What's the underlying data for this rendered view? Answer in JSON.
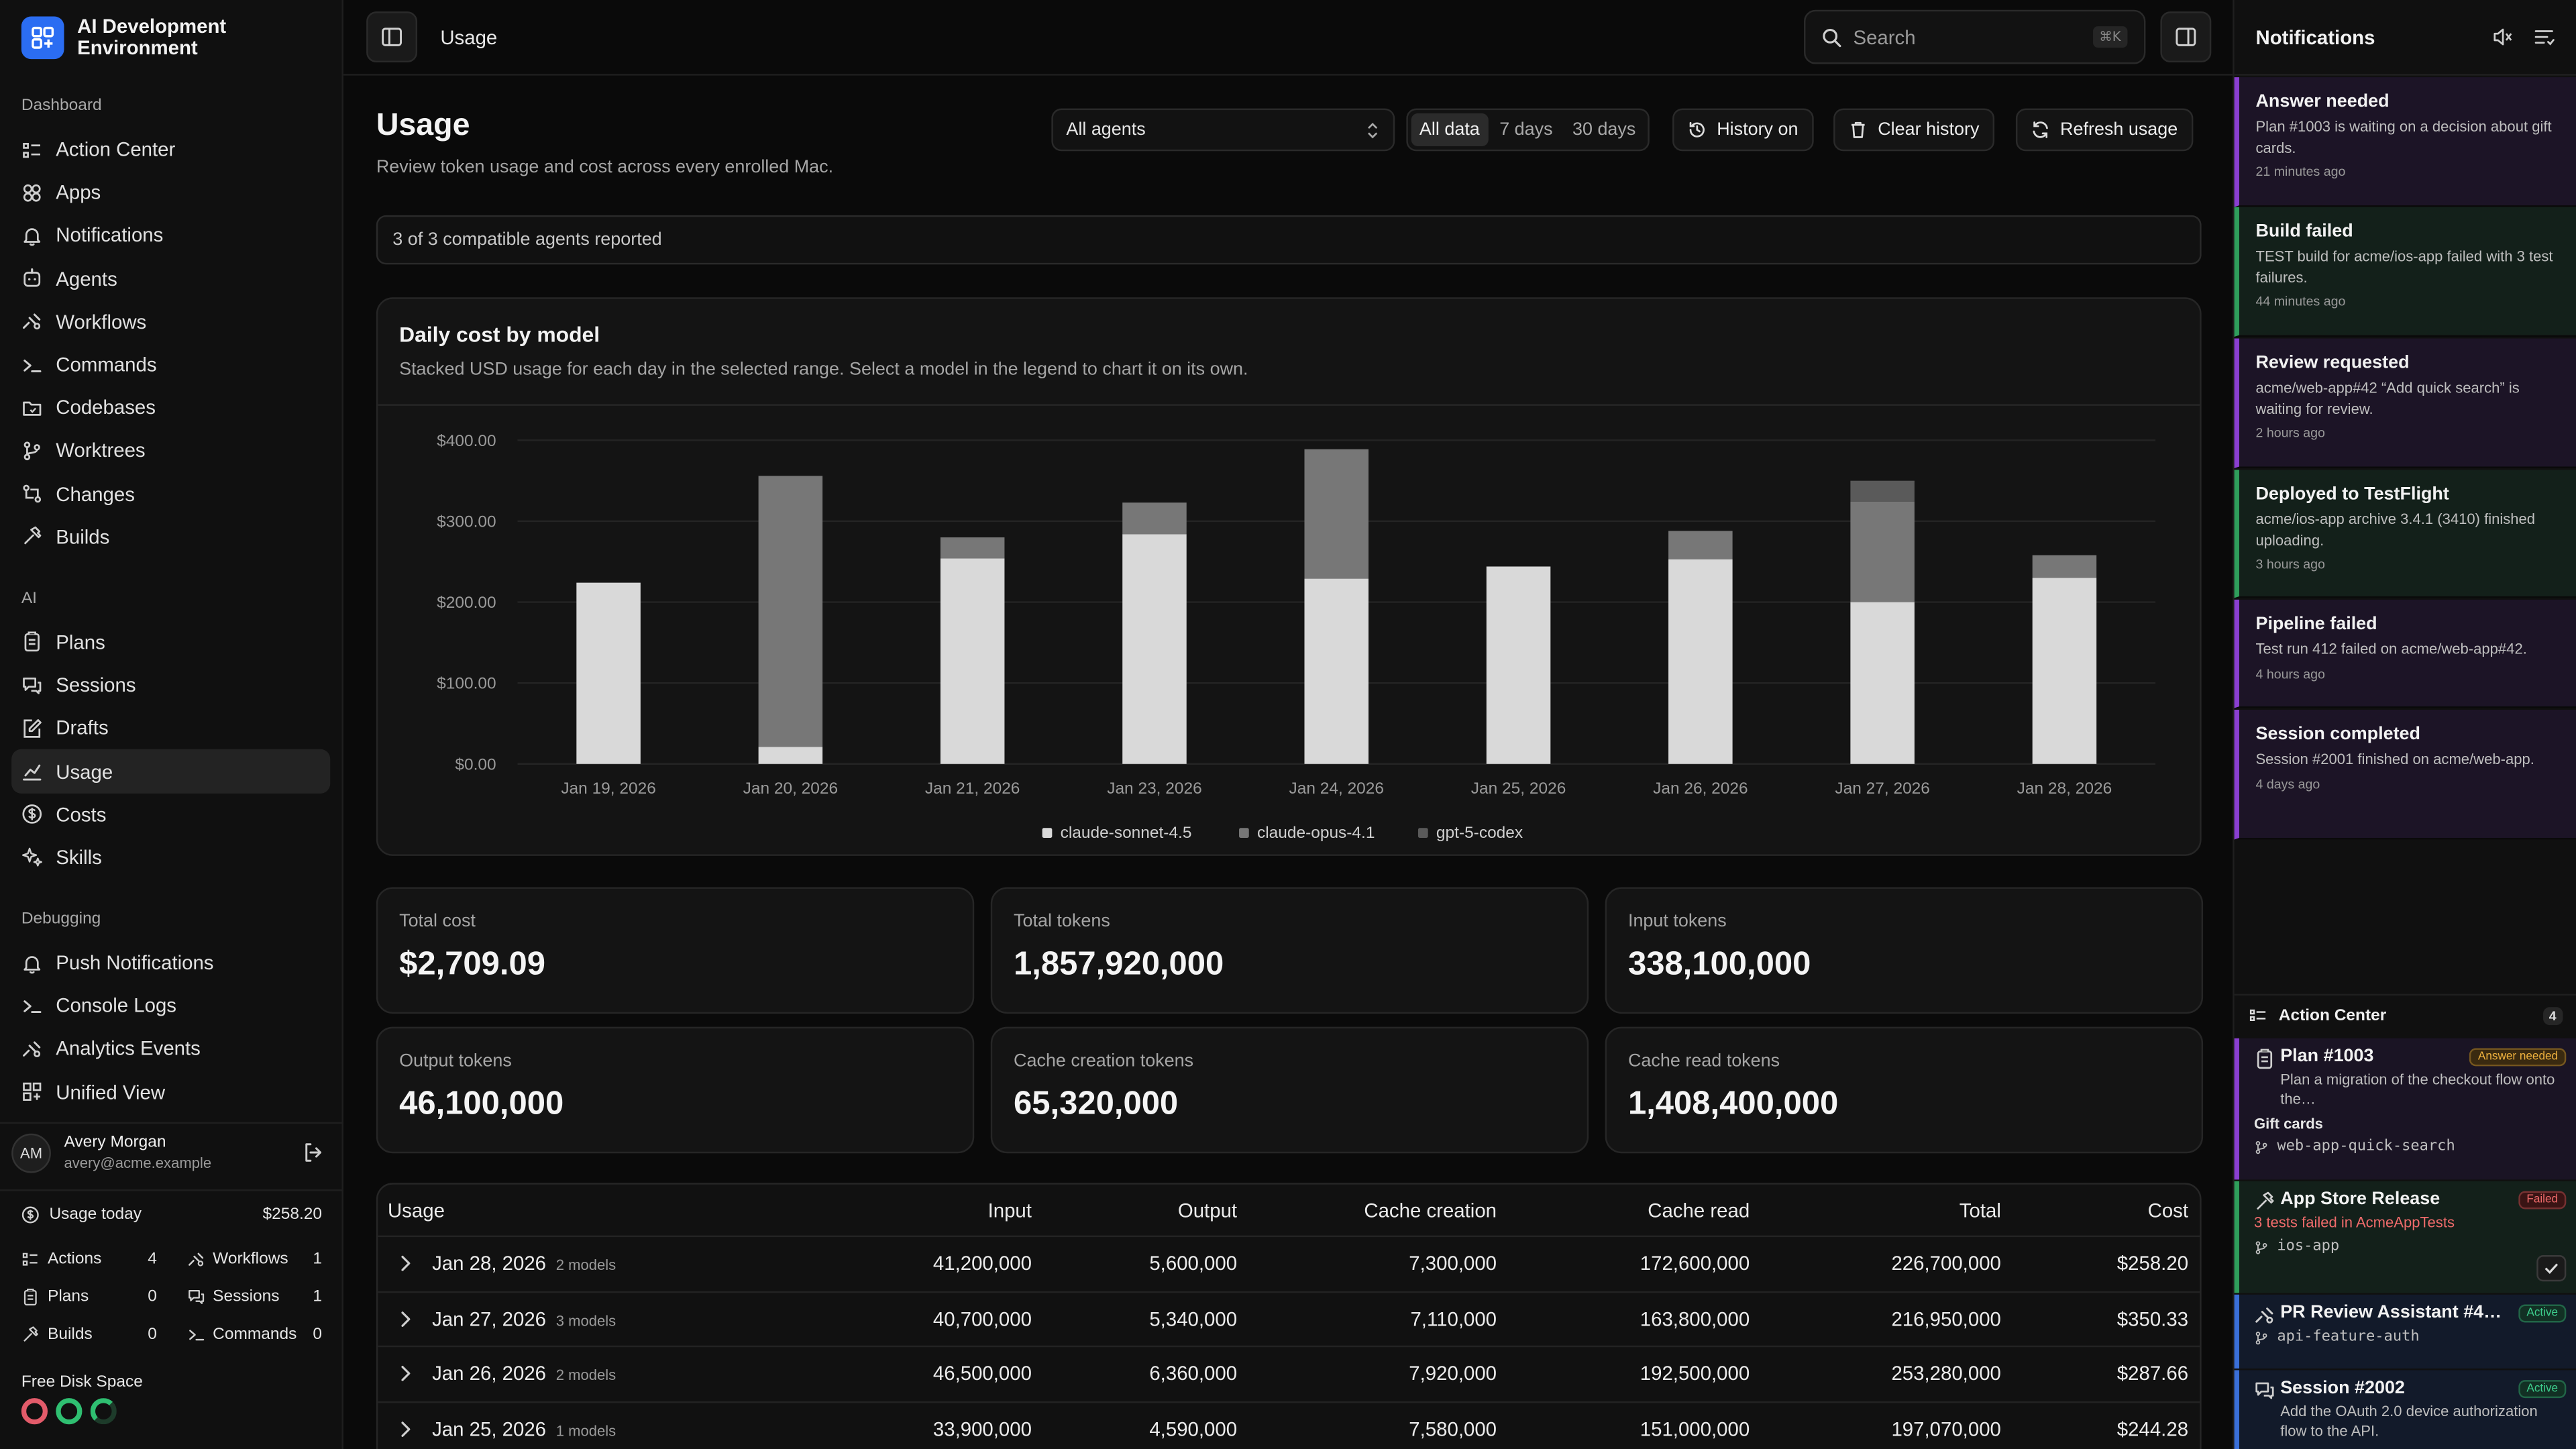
{
  "app": {
    "name": "AI Development Environment"
  },
  "sidebar": {
    "sections": [
      {
        "title": "Dashboard",
        "items": [
          {
            "label": "Action Center",
            "icon": "action-center-icon"
          },
          {
            "label": "Apps",
            "icon": "apps-icon"
          },
          {
            "label": "Notifications",
            "icon": "bell-icon"
          },
          {
            "label": "Agents",
            "icon": "agent-icon"
          },
          {
            "label": "Workflows",
            "icon": "workflow-icon"
          },
          {
            "label": "Commands",
            "icon": "terminal-icon"
          },
          {
            "label": "Codebases",
            "icon": "folder-icon"
          },
          {
            "label": "Worktrees",
            "icon": "branch-icon"
          },
          {
            "label": "Changes",
            "icon": "diff-icon"
          },
          {
            "label": "Builds",
            "icon": "hammer-icon"
          }
        ]
      },
      {
        "title": "AI",
        "items": [
          {
            "label": "Plans",
            "icon": "clipboard-icon"
          },
          {
            "label": "Sessions",
            "icon": "chat-icon"
          },
          {
            "label": "Drafts",
            "icon": "edit-icon"
          },
          {
            "label": "Usage",
            "icon": "chart-icon",
            "active": true
          },
          {
            "label": "Costs",
            "icon": "dollar-icon"
          },
          {
            "label": "Skills",
            "icon": "sparkle-icon"
          }
        ]
      },
      {
        "title": "Debugging",
        "items": [
          {
            "label": "Push Notifications",
            "icon": "bell-icon"
          },
          {
            "label": "Console Logs",
            "icon": "terminal-icon"
          },
          {
            "label": "Analytics Events",
            "icon": "workflow-icon"
          },
          {
            "label": "Unified View",
            "icon": "grid-icon"
          }
        ]
      }
    ],
    "user": {
      "initials": "AM",
      "name": "Avery Morgan",
      "email": "avery@acme.example"
    },
    "usage_today": {
      "label": "Usage today",
      "value": "$258.20"
    },
    "stats": [
      {
        "label": "Actions",
        "value": "4",
        "icon": "action-center-icon"
      },
      {
        "label": "Workflows",
        "value": "1",
        "icon": "workflow-icon"
      },
      {
        "label": "Plans",
        "value": "0",
        "icon": "clipboard-icon"
      },
      {
        "label": "Sessions",
        "value": "1",
        "icon": "chat-icon"
      },
      {
        "label": "Builds",
        "value": "0",
        "icon": "hammer-icon"
      },
      {
        "label": "Commands",
        "value": "0",
        "icon": "terminal-icon"
      }
    ],
    "disk": {
      "label": "Free Disk Space",
      "ring_colors": [
        "#e35b6a",
        "#2fbf71",
        "#2fbf71"
      ]
    }
  },
  "topbar": {
    "title": "Usage",
    "search_placeholder": "Search",
    "search_shortcut": "⌘K"
  },
  "page": {
    "title": "Usage",
    "subtitle": "Review token usage and cost across every enrolled Mac.",
    "agent_filter": "All agents",
    "ranges": [
      {
        "label": "All data",
        "active": true
      },
      {
        "label": "7 days"
      },
      {
        "label": "30 days"
      }
    ],
    "buttons": {
      "history": "History on",
      "clear": "Clear history",
      "refresh": "Refresh usage"
    },
    "reported": "3 of 3 compatible agents reported"
  },
  "chart": {
    "title": "Daily cost by model",
    "subtitle": "Stacked USD usage for each day in the selected range. Select a model in the legend to chart it on its own."
  },
  "chart_data": {
    "type": "bar",
    "stacked": true,
    "categories": [
      "Jan 19, 2026",
      "Jan 20, 2026",
      "Jan 21, 2026",
      "Jan 23, 2026",
      "Jan 24, 2026",
      "Jan 25, 2026",
      "Jan 26, 2026",
      "Jan 27, 2026",
      "Jan 28, 2026"
    ],
    "series": [
      {
        "name": "claude-sonnet-4.5",
        "color": "#d9d9d9",
        "values": [
          224,
          21,
          254,
          284,
          229,
          244,
          253,
          200,
          230
        ]
      },
      {
        "name": "claude-opus-4.1",
        "color": "#777777",
        "values": [
          0,
          335,
          26,
          39,
          160,
          0,
          35,
          124,
          28
        ]
      },
      {
        "name": "gpt-5-codex",
        "color": "#5a5a5a",
        "values": [
          0,
          0,
          0,
          0,
          0,
          0,
          0,
          26,
          0
        ]
      }
    ],
    "yticks": [
      "$0.00",
      "$100.00",
      "$200.00",
      "$300.00",
      "$400.00"
    ],
    "ylim": [
      0,
      400
    ],
    "grid": true,
    "legend": "bottom-center"
  },
  "kpis": [
    {
      "label": "Total cost",
      "value": "$2,709.09"
    },
    {
      "label": "Total tokens",
      "value": "1,857,920,000"
    },
    {
      "label": "Input tokens",
      "value": "338,100,000"
    },
    {
      "label": "Output tokens",
      "value": "46,100,000"
    },
    {
      "label": "Cache creation tokens",
      "value": "65,320,000"
    },
    {
      "label": "Cache read tokens",
      "value": "1,408,400,000"
    }
  ],
  "table": {
    "columns": [
      "Usage",
      "Input",
      "Output",
      "Cache creation",
      "Cache read",
      "Total",
      "Cost"
    ],
    "rows": [
      {
        "date": "Jan 28, 2026",
        "models": "2 models",
        "input": "41,200,000",
        "output": "5,600,000",
        "cache_creation": "7,300,000",
        "cache_read": "172,600,000",
        "total": "226,700,000",
        "cost": "$258.20"
      },
      {
        "date": "Jan 27, 2026",
        "models": "3 models",
        "input": "40,700,000",
        "output": "5,340,000",
        "cache_creation": "7,110,000",
        "cache_read": "163,800,000",
        "total": "216,950,000",
        "cost": "$350.33"
      },
      {
        "date": "Jan 26, 2026",
        "models": "2 models",
        "input": "46,500,000",
        "output": "6,360,000",
        "cache_creation": "7,920,000",
        "cache_read": "192,500,000",
        "total": "253,280,000",
        "cost": "$287.66"
      },
      {
        "date": "Jan 25, 2026",
        "models": "1 models",
        "input": "33,900,000",
        "output": "4,590,000",
        "cache_creation": "7,580,000",
        "cache_read": "151,000,000",
        "total": "197,070,000",
        "cost": "$244.28"
      }
    ]
  },
  "notifications": {
    "title": "Notifications",
    "items": [
      {
        "title": "Answer needed",
        "body": "Plan #1003 is waiting on a decision about gift cards.",
        "time": "21 minutes ago",
        "accent": "#8a3fd1",
        "bg": "#1c1426"
      },
      {
        "title": "Build failed",
        "body": "TEST build for acme/ios-app failed with 3 test failures.",
        "time": "44 minutes ago",
        "accent": "#2f9e5b",
        "bg": "#13201a"
      },
      {
        "title": "Review requested",
        "body": "acme/web-app#42 “Add quick search” is waiting for review.",
        "time": "2 hours ago",
        "accent": "#8a3fd1",
        "bg": "#1c1426"
      },
      {
        "title": "Deployed to TestFlight",
        "body": "acme/ios-app archive 3.4.1 (3410) finished uploading.",
        "time": "3 hours ago",
        "accent": "#2f9e5b",
        "bg": "#13201a"
      },
      {
        "title": "Pipeline failed",
        "body": "Test run 412 failed on acme/web-app#42.",
        "time": "4 hours ago",
        "accent": "#8a3fd1",
        "bg": "#1c1426"
      },
      {
        "title": "Session completed",
        "body": "Session #2001 finished on acme/web-app.",
        "time": "4 days ago",
        "accent": "#8a3fd1",
        "bg": "#1c1426"
      }
    ]
  },
  "action_center": {
    "title": "Action Center",
    "count": "4",
    "items": [
      {
        "title": "Plan #1003",
        "badge": "Answer needed",
        "desc": "Plan a migration of the checkout flow onto the…",
        "extra": "Gift cards",
        "branch": "web-app-quick-search",
        "accent": "#8a3fd1"
      },
      {
        "title": "App Store Release",
        "badge": "Failed",
        "desc": "3 tests failed in AcmeAppTests",
        "branch": "ios-app",
        "accent": "#2f9e5b"
      },
      {
        "title": "PR Review Assistant #4…",
        "badge": "Active",
        "branch": "api-feature-auth",
        "accent": "#3a6fd8"
      },
      {
        "title": "Session #2002",
        "badge": "Active",
        "desc": "Add the OAuth 2.0 device authorization flow to the API.",
        "accent": "#3a6fd8"
      }
    ]
  }
}
